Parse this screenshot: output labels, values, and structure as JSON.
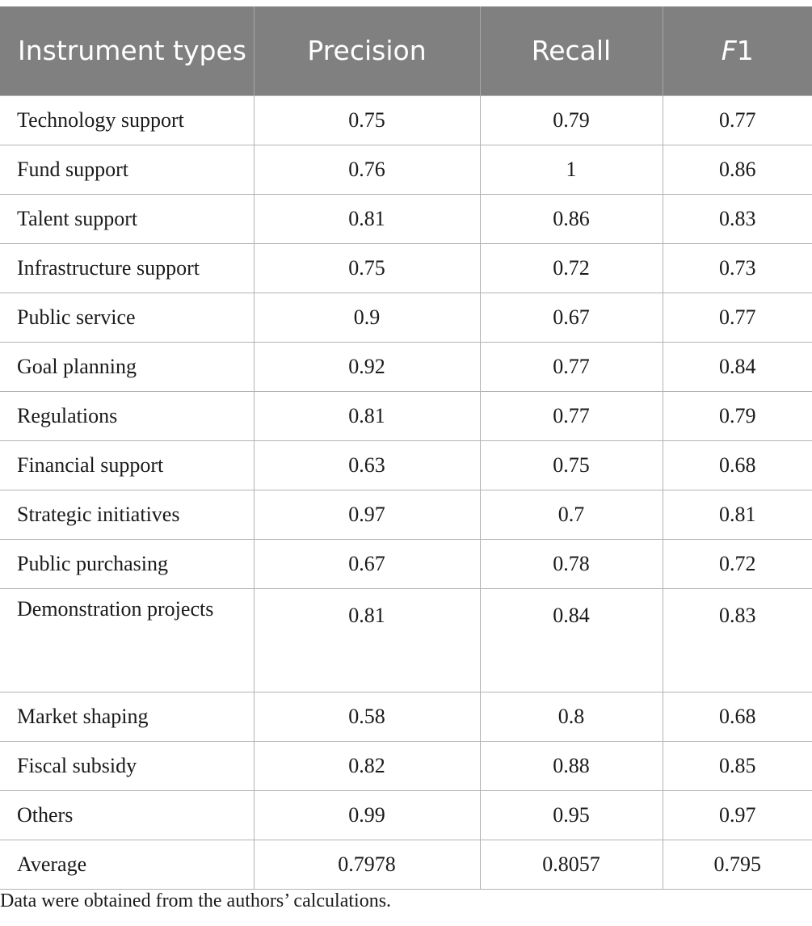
{
  "table": {
    "headers": [
      "Instrument types",
      "Precision",
      "Recall",
      "F1"
    ],
    "header_f1_prefix": "F",
    "header_f1_suffix": "1",
    "rows": [
      {
        "type": "Technology support",
        "precision": "0.75",
        "recall": "0.79",
        "f1": "0.77"
      },
      {
        "type": "Fund support",
        "precision": "0.76",
        "recall": "1",
        "f1": "0.86"
      },
      {
        "type": "Talent support",
        "precision": "0.81",
        "recall": "0.86",
        "f1": "0.83"
      },
      {
        "type": "Infrastructure support",
        "precision": "0.75",
        "recall": "0.72",
        "f1": "0.73"
      },
      {
        "type": "Public service",
        "precision": "0.9",
        "recall": "0.67",
        "f1": "0.77"
      },
      {
        "type": "Goal planning",
        "precision": "0.92",
        "recall": "0.77",
        "f1": "0.84"
      },
      {
        "type": "Regulations",
        "precision": "0.81",
        "recall": "0.77",
        "f1": "0.79"
      },
      {
        "type": "Financial support",
        "precision": "0.63",
        "recall": "0.75",
        "f1": "0.68"
      },
      {
        "type": "Strategic initiatives",
        "precision": "0.97",
        "recall": "0.7",
        "f1": "0.81"
      },
      {
        "type": "Public purchasing",
        "precision": "0.67",
        "recall": "0.78",
        "f1": "0.72"
      },
      {
        "type": "Demonstration projects",
        "precision": "0.81",
        "recall": "0.84",
        "f1": "0.83"
      },
      {
        "type": "Market shaping",
        "precision": "0.58",
        "recall": "0.8",
        "f1": "0.68"
      },
      {
        "type": "Fiscal subsidy",
        "precision": "0.82",
        "recall": "0.88",
        "f1": "0.85"
      },
      {
        "type": "Others",
        "precision": "0.99",
        "recall": "0.95",
        "f1": "0.97"
      },
      {
        "type": "Average",
        "precision": "0.7978",
        "recall": "0.8057",
        "f1": "0.795"
      }
    ]
  },
  "footnote": "Data were obtained from the authors’ calculations.",
  "colors": {
    "header_bg": "#808080",
    "header_text": "#ffffff",
    "grid": "#b3b3b3"
  }
}
